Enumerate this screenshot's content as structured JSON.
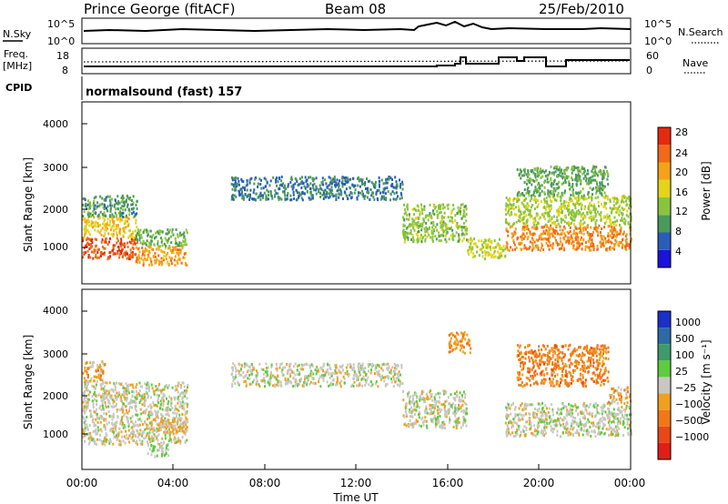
{
  "header": {
    "station": "Prince George (fitACF)",
    "beam": "Beam 08",
    "date": "25/Feb/2010"
  },
  "noise_panel": {
    "left_label": "N.Sky",
    "left_ticks": [
      "10^5",
      "10^0"
    ],
    "right_label": "N.Search",
    "right_ticks": [
      "10^5",
      "10^0"
    ]
  },
  "freq_panel": {
    "left_label_1": "Freq.",
    "left_label_2": "[MHz]",
    "left_ticks": [
      "18",
      "8"
    ],
    "right_label": "Nave",
    "right_ticks": [
      "60",
      "0"
    ]
  },
  "cpid": {
    "label": "CPID",
    "value": "normalsound (fast) 157"
  },
  "power_panel": {
    "ylabel": "Slant Range [km]",
    "yticks": [
      "4000",
      "3000",
      "2000",
      "1000"
    ],
    "colorbar_label": "Power [dB]",
    "colorbar_ticks": [
      "28",
      "24",
      "20",
      "16",
      "12",
      "8",
      "4"
    ],
    "colors": [
      "#1b12dc",
      "#2a5db8",
      "#4b9a5c",
      "#8ac43c",
      "#e4d41a",
      "#f5a11a",
      "#f06a17",
      "#e52a10"
    ]
  },
  "velocity_panel": {
    "ylabel": "Slant Range [km]",
    "yticks": [
      "4000",
      "3000",
      "2000",
      "1000"
    ],
    "colorbar_label": "Velocity [m s⁻¹]",
    "colorbar_ticks": [
      "1000",
      "500",
      "100",
      "25",
      "−25",
      "−100",
      "−500",
      "−1000"
    ],
    "colors": [
      "#1b2fc9",
      "#2d6aa6",
      "#3f9a6a",
      "#5ecb40",
      "#c8c8c0",
      "#f0a020",
      "#f07818",
      "#e84818",
      "#e01e18"
    ]
  },
  "x_axis": {
    "ticks": [
      "00:00",
      "04:00",
      "08:00",
      "12:00",
      "16:00",
      "20:00",
      "00:00"
    ],
    "label": "Time UT"
  },
  "chart_data": [
    {
      "type": "heatmap",
      "quantity": "Power [dB]",
      "title": "Prince George (fitACF)",
      "xlabel": "Time UT",
      "ylabel": "Slant Range [km]",
      "xlim": [
        "00:00",
        "24:00"
      ],
      "ylim": [
        180,
        4500
      ],
      "clim": [
        0,
        32
      ],
      "grid": false,
      "legend": "right colorbar",
      "regions": [
        {
          "t0": 0.0,
          "t1": 2.4,
          "r0": 800,
          "r1": 1300,
          "value": 27
        },
        {
          "t0": 0.0,
          "t1": 2.4,
          "r0": 1300,
          "r1": 1800,
          "value": 19
        },
        {
          "t0": 0.0,
          "t1": 2.4,
          "r0": 1800,
          "r1": 2300,
          "value": 10
        },
        {
          "t0": 2.3,
          "t1": 4.6,
          "r0": 650,
          "r1": 1100,
          "value": 22
        },
        {
          "t0": 2.3,
          "t1": 4.6,
          "r0": 1100,
          "r1": 1500,
          "value": 12
        },
        {
          "t0": 6.5,
          "t1": 14.0,
          "r0": 2200,
          "r1": 2750,
          "value": 8
        },
        {
          "t0": 14.0,
          "t1": 16.8,
          "r0": 1200,
          "r1": 2100,
          "value": 14
        },
        {
          "t0": 16.8,
          "t1": 18.5,
          "r0": 800,
          "r1": 1300,
          "value": 17
        },
        {
          "t0": 18.5,
          "t1": 24.0,
          "r0": 1000,
          "r1": 1600,
          "value": 24
        },
        {
          "t0": 18.5,
          "t1": 24.0,
          "r0": 1600,
          "r1": 2300,
          "value": 15
        },
        {
          "t0": 19.0,
          "t1": 23.0,
          "r0": 2300,
          "r1": 3000,
          "value": 11
        }
      ]
    },
    {
      "type": "heatmap",
      "quantity": "Velocity [m s-1]",
      "xlabel": "Time UT",
      "ylabel": "Slant Range [km]",
      "xlim": [
        "00:00",
        "24:00"
      ],
      "ylim": [
        180,
        4500
      ],
      "clim": [
        -1000,
        1000
      ],
      "grid": false,
      "legend": "right colorbar",
      "regions": [
        {
          "t0": 0.0,
          "t1": 4.6,
          "r0": 800,
          "r1": 2300,
          "value": 0
        },
        {
          "t0": 0.0,
          "t1": 1.0,
          "r0": 2300,
          "r1": 2800,
          "value": -250
        },
        {
          "t0": 3.0,
          "t1": 4.6,
          "r0": 1100,
          "r1": 1500,
          "value": -150
        },
        {
          "t0": 2.8,
          "t1": 3.8,
          "r0": 500,
          "r1": 800,
          "value": 100
        },
        {
          "t0": 6.5,
          "t1": 14.0,
          "r0": 2200,
          "r1": 2750,
          "value": 0
        },
        {
          "t0": 14.0,
          "t1": 16.8,
          "r0": 1200,
          "r1": 2100,
          "value": 0
        },
        {
          "t0": 16.0,
          "t1": 17.0,
          "r0": 3000,
          "r1": 3500,
          "value": -300
        },
        {
          "t0": 18.5,
          "t1": 24.0,
          "r0": 1000,
          "r1": 1800,
          "value": 0
        },
        {
          "t0": 19.0,
          "t1": 23.0,
          "r0": 2200,
          "r1": 3200,
          "value": -400
        },
        {
          "t0": 23.0,
          "t1": 24.0,
          "r0": 1800,
          "r1": 2200,
          "value": -200
        }
      ]
    }
  ]
}
